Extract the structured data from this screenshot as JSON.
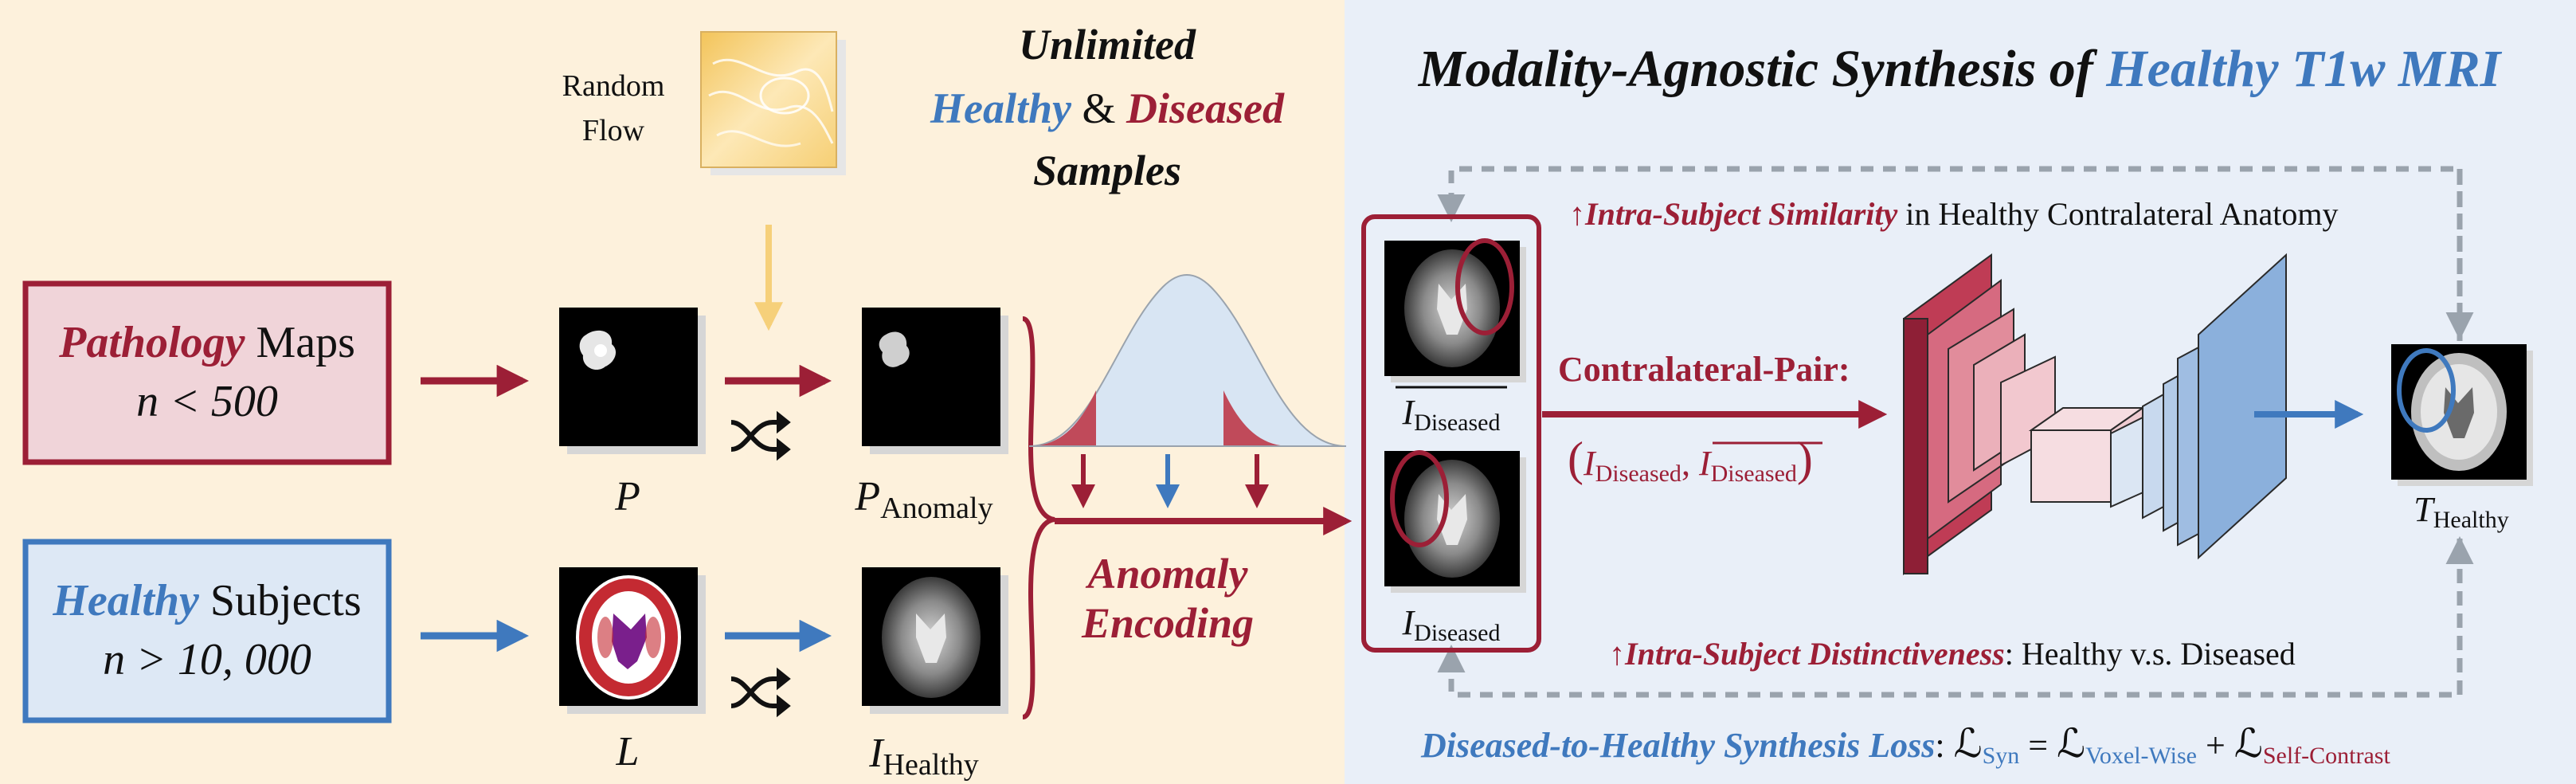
{
  "colors": {
    "left_bg": "#fdf1dc",
    "right_bg": "#e9eff8",
    "dark_red": "#9c1f36",
    "blue": "#3f79be",
    "pink_fill": "#f0d4d9",
    "blue_fill": "#dde8f5",
    "flow_yellow": "#f6d07a",
    "dashed_gray": "#9aa3ad"
  },
  "left": {
    "random_flow": [
      "Random",
      "Flow"
    ],
    "unlimited": {
      "line1": "Unlimited",
      "healthy": "Healthy",
      "amp": " & ",
      "diseased": "Diseased",
      "line3": "Samples"
    },
    "pathology_box": {
      "word_colored": "Pathology",
      "word_rest": " Maps",
      "count": "n < 500"
    },
    "healthy_box": {
      "word_colored": "Healthy",
      "word_rest": " Subjects",
      "count": "n > 10, 000"
    },
    "labels": {
      "P": "P",
      "P_anomaly_main": "P",
      "P_anomaly_sub": "Anomaly",
      "L": "L",
      "I_healthy_main": "I",
      "I_healthy_sub": "Healthy"
    },
    "anomaly_encoding": [
      "Anomaly",
      "Encoding"
    ]
  },
  "right": {
    "title_part1": "Modality-Agnostic Synthesis of ",
    "title_part2": "Healthy T1w MRI",
    "similarity": {
      "arrow": "↑",
      "bold": "Intra-Subject Similarity",
      "rest": " in Healthy Contralateral Anatomy"
    },
    "contralateral": {
      "label": "Contralateral-Pair:",
      "pair_open": "(",
      "i1_main": "I",
      "i1_sub": "Diseased",
      "comma": ", ",
      "i2_main": "I",
      "i2_sub": "Diseased",
      "pair_close": ")"
    },
    "top_image_label": {
      "main": "I",
      "sub": "Diseased"
    },
    "bottom_image_label": {
      "main": "I",
      "sub": "Diseased"
    },
    "output_label": {
      "main": "T",
      "sub": "Healthy"
    },
    "distinctiveness": {
      "arrow": "↑",
      "bold": "Intra-Subject Distinctiveness",
      "rest": ": Healthy v.s. Diseased"
    },
    "loss": {
      "label": "Diseased-to-Healthy Synthesis Loss",
      "colon": ":",
      "L1_sub": "Syn",
      "eq": " = ",
      "L2_sub": "Voxel-Wise",
      "plus": " + ",
      "L3_sub": "Self-Contrast",
      "L_symbol": "ℒ"
    }
  }
}
